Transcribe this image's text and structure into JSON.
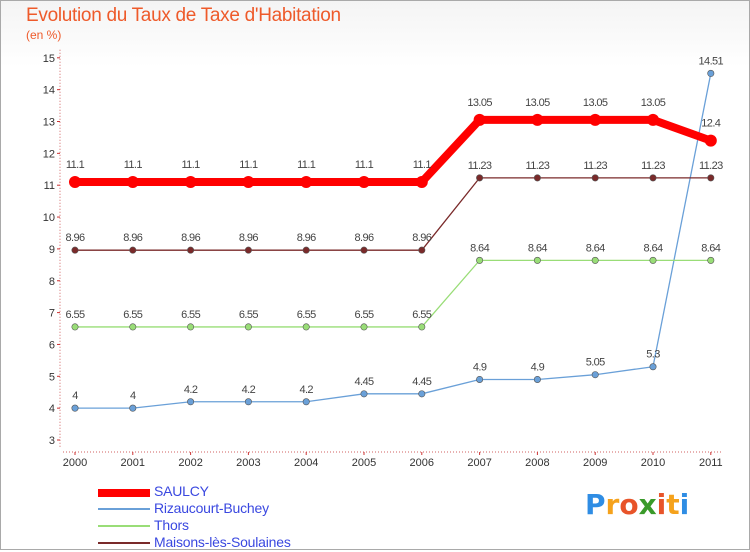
{
  "header": {
    "title": "Evolution du Taux de Taxe d'Habitation",
    "subtitle": "(en %)"
  },
  "chart_data": {
    "type": "line",
    "title": "Evolution du Taux de Taxe d'Habitation",
    "ylabel": "(en %)",
    "xlabel": "",
    "x": [
      "2000",
      "2001",
      "2002",
      "2003",
      "2004",
      "2005",
      "2006",
      "2007",
      "2008",
      "2009",
      "2010",
      "2011"
    ],
    "ylim": [
      3,
      15
    ],
    "yticks": [
      3,
      4,
      5,
      6,
      7,
      8,
      9,
      10,
      11,
      12,
      13,
      14,
      15
    ],
    "grid": false,
    "legend_position": "bottom-left",
    "series": [
      {
        "name": "SAULCY",
        "color": "#ff0000",
        "values": [
          11.1,
          11.1,
          11.1,
          11.1,
          11.1,
          11.1,
          11.1,
          13.05,
          13.05,
          13.05,
          13.05,
          12.4
        ],
        "labels": [
          "11.1",
          "11.1",
          "11.1",
          "11.1",
          "11.1",
          "11.1",
          "11.1",
          "13.05",
          "13.05",
          "13.05",
          "13.05",
          "12.4"
        ]
      },
      {
        "name": "Rizaucourt-Buchey",
        "color": "#6aa0d8",
        "values": [
          4,
          4,
          4.2,
          4.2,
          4.2,
          4.45,
          4.45,
          4.9,
          4.9,
          5.05,
          5.3,
          14.51
        ],
        "labels": [
          "4",
          "4",
          "4.2",
          "4.2",
          "4.2",
          "4.45",
          "4.45",
          "4.9",
          "4.9",
          "5.05",
          "5.3",
          "14.51"
        ]
      },
      {
        "name": "Thors",
        "color": "#99dd77",
        "values": [
          6.55,
          6.55,
          6.55,
          6.55,
          6.55,
          6.55,
          6.55,
          8.64,
          8.64,
          8.64,
          8.64,
          8.64
        ],
        "labels": [
          "6.55",
          "6.55",
          "6.55",
          "6.55",
          "6.55",
          "6.55",
          "6.55",
          "8.64",
          "8.64",
          "8.64",
          "8.64",
          "8.64"
        ]
      },
      {
        "name": "Maisons-lès-Soulaines",
        "color": "#7a2a2a",
        "values": [
          8.96,
          8.96,
          8.96,
          8.96,
          8.96,
          8.96,
          8.96,
          11.23,
          11.23,
          11.23,
          11.23,
          11.23
        ],
        "labels": [
          "8.96",
          "8.96",
          "8.96",
          "8.96",
          "8.96",
          "8.96",
          "8.96",
          "11.23",
          "11.23",
          "11.23",
          "11.23",
          "11.23"
        ]
      }
    ]
  },
  "logo": {
    "letters": [
      "P",
      "r",
      "o",
      "x",
      "i",
      "t",
      "i"
    ],
    "colors": [
      "#2f8de4",
      "#f5a21c",
      "#e8542a",
      "#3a9a2a",
      "#e8542a",
      "#f5a21c",
      "#2f8de4"
    ]
  }
}
